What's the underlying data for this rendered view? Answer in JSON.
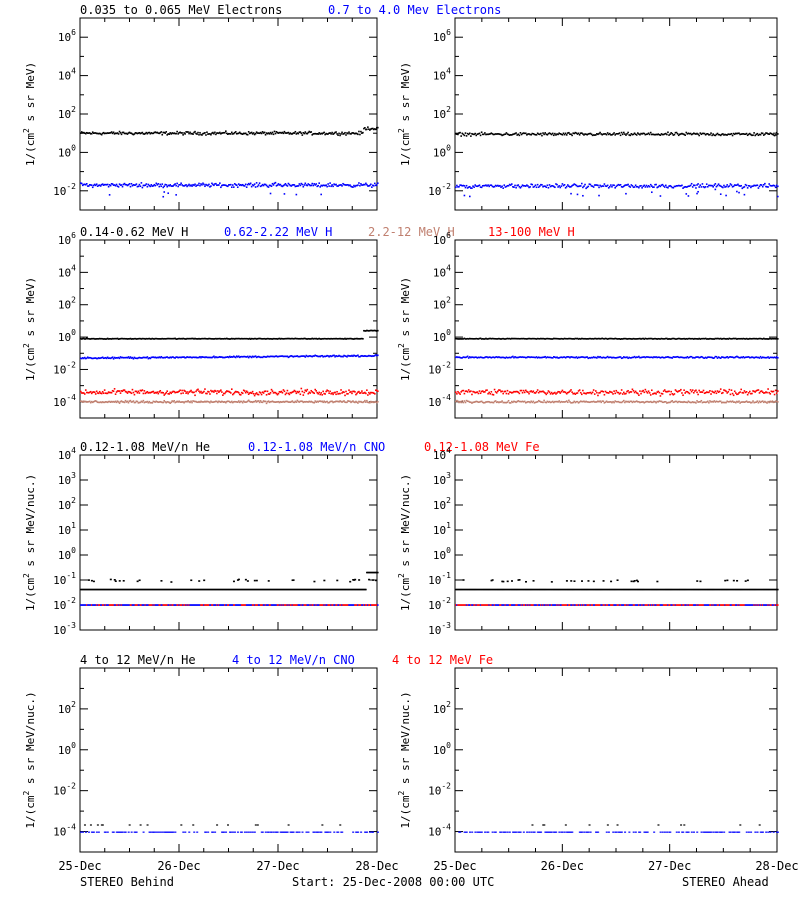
{
  "colors": {
    "black": "#000000",
    "blue": "#0000ff",
    "brown": "#c08070",
    "red": "#ff0000"
  },
  "footer": {
    "left": "STEREO Behind",
    "center": "Start: 25-Dec-2008 00:00 UTC",
    "right": "STEREO Ahead"
  },
  "x_ticks": [
    "25-Dec",
    "26-Dec",
    "27-Dec",
    "28-Dec"
  ],
  "chart_data": [
    {
      "type": "scatter",
      "row": 0,
      "ylabel_parts": [
        "1/(cm",
        "2",
        " s sr MeV)"
      ],
      "y_log_range": [
        -3,
        7
      ],
      "y_tick_exps": [
        -2,
        0,
        2,
        4,
        6
      ],
      "x_range_days": [
        0,
        3
      ],
      "legend": [
        {
          "text": "0.035 to 0.065 MeV Electrons",
          "color": "black"
        },
        {
          "text": "0.7 to 4.0 Mev Electrons",
          "color": "blue"
        }
      ],
      "panels": [
        {
          "name": "STEREO Behind",
          "series": [
            {
              "color": "black",
              "base": 1.0,
              "noise": 0.12,
              "step_day": 2.85,
              "step_to": 1.25
            },
            {
              "color": "blue",
              "base": -1.7,
              "noise": 0.15,
              "outliers": 0.04
            }
          ]
        },
        {
          "name": "STEREO Ahead",
          "series": [
            {
              "color": "black",
              "base": 0.95,
              "noise": 0.12
            },
            {
              "color": "blue",
              "base": -1.75,
              "noise": 0.15,
              "outliers": 0.06
            }
          ]
        }
      ]
    },
    {
      "type": "scatter",
      "row": 1,
      "ylabel_parts": [
        "1/(cm",
        "2",
        " s sr MeV)"
      ],
      "y_log_range": [
        -5,
        6
      ],
      "y_tick_exps": [
        -4,
        -2,
        0,
        2,
        4,
        6
      ],
      "x_range_days": [
        0,
        3
      ],
      "legend": [
        {
          "text": "0.14-0.62 MeV H",
          "color": "black"
        },
        {
          "text": "0.62-2.22 MeV H",
          "color": "blue"
        },
        {
          "text": "2.2-12 MeV H",
          "color": "brown"
        },
        {
          "text": "13-100 MeV H",
          "color": "red"
        }
      ],
      "panels": [
        {
          "name": "STEREO Behind",
          "series": [
            {
              "color": "black",
              "base": -0.1,
              "noise": 0.03,
              "step_day": 2.85,
              "step_to": 0.4
            },
            {
              "color": "blue",
              "base": -1.3,
              "noise": 0.07,
              "trend": 0.15
            },
            {
              "color": "red",
              "base": -3.4,
              "noise": 0.25
            },
            {
              "color": "brown",
              "base": -4.0,
              "noise": 0.1
            }
          ]
        },
        {
          "name": "STEREO Ahead",
          "series": [
            {
              "color": "black",
              "base": -0.1,
              "noise": 0.03
            },
            {
              "color": "blue",
              "base": -1.25,
              "noise": 0.07
            },
            {
              "color": "red",
              "base": -3.4,
              "noise": 0.25
            },
            {
              "color": "brown",
              "base": -4.0,
              "noise": 0.1
            }
          ]
        }
      ]
    },
    {
      "type": "scatter",
      "row": 2,
      "ylabel_parts": [
        "1/(cm",
        "2",
        " s sr MeV/nuc.)"
      ],
      "y_log_range": [
        -3,
        4
      ],
      "y_tick_exps": [
        -3,
        -2,
        -1,
        0,
        1,
        2,
        3,
        4
      ],
      "x_range_days": [
        0,
        3
      ],
      "legend": [
        {
          "text": "0.12-1.08 MeV/n He",
          "color": "black"
        },
        {
          "text": "0.12-1.08 MeV/n CNO",
          "color": "blue"
        },
        {
          "text": "0.12-1.08 MeV Fe",
          "color": "red"
        }
      ],
      "panels": [
        {
          "name": "STEREO Behind",
          "series": [
            {
              "color": "black",
              "base": -1.38,
              "noise": 0.0,
              "sparse_above": -1.0,
              "step_day": 2.88,
              "step_to": -0.7
            },
            {
              "color": "blue",
              "base": -2.0,
              "noise": 0.0,
              "mixed_red": true
            }
          ]
        },
        {
          "name": "STEREO Ahead",
          "series": [
            {
              "color": "black",
              "base": -1.38,
              "noise": 0.0,
              "sparse_above": -1.0
            },
            {
              "color": "blue",
              "base": -2.0,
              "noise": 0.0,
              "mixed_red": true
            }
          ]
        }
      ]
    },
    {
      "type": "scatter",
      "row": 3,
      "ylabel_parts": [
        "1/(cm",
        "2",
        " s sr MeV/nuc.)"
      ],
      "y_log_range": [
        -5,
        4
      ],
      "y_tick_exps": [
        -4,
        -2,
        0,
        2
      ],
      "x_range_days": [
        0,
        3
      ],
      "legend": [
        {
          "text": "4 to 12 MeV/n He",
          "color": "black"
        },
        {
          "text": "4 to 12 MeV/n CNO",
          "color": "blue"
        },
        {
          "text": "4 to 12 MeV Fe",
          "color": "red"
        }
      ],
      "panels": [
        {
          "name": "STEREO Behind",
          "series": [
            {
              "color": "blue",
              "base": -4.0,
              "noise": 0.0,
              "sparse_line": true
            }
          ]
        },
        {
          "name": "STEREO Ahead",
          "series": [
            {
              "color": "blue",
              "base": -4.0,
              "noise": 0.0,
              "sparse_line": true
            }
          ]
        }
      ]
    }
  ]
}
